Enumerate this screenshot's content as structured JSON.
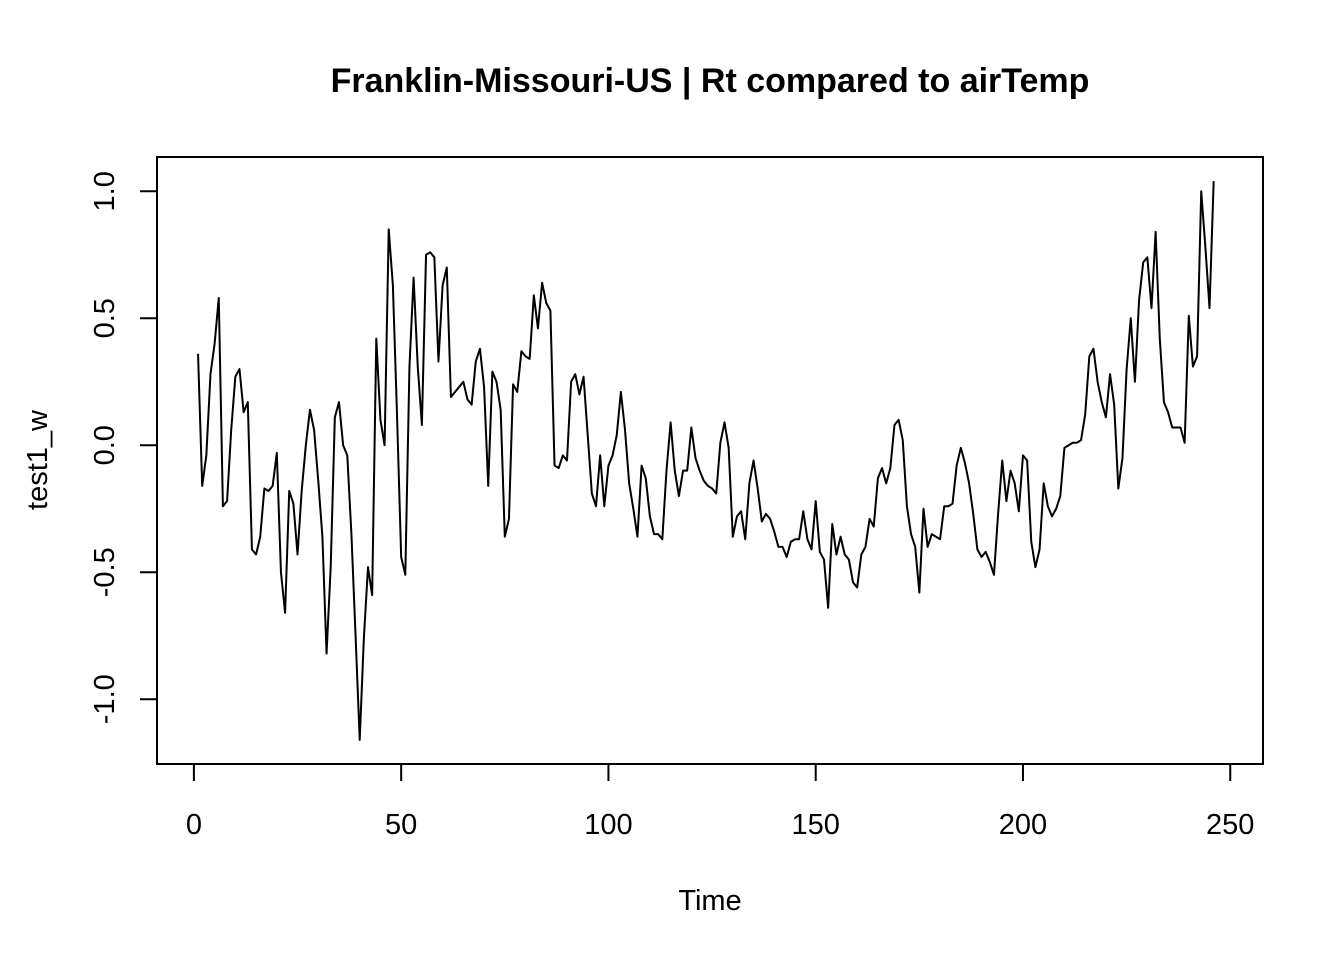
{
  "chart_data": {
    "type": "line",
    "title": "Franklin-Missouri-US | Rt compared to airTemp",
    "xlabel": "Time",
    "ylabel": "test1_w",
    "xlim": [
      -8.9,
      257.9
    ],
    "ylim": [
      -1.255,
      1.135
    ],
    "x_ticks": [
      0,
      50,
      100,
      150,
      200,
      250
    ],
    "x_tick_labels": [
      "0",
      "50",
      "100",
      "150",
      "200",
      "250"
    ],
    "y_ticks": [
      -1.0,
      -0.5,
      0.0,
      0.5,
      1.0
    ],
    "y_tick_labels": [
      "-1.0",
      "-0.5",
      "0.0",
      "0.5",
      "1.0"
    ],
    "grid": false,
    "legend": "none",
    "x_start": 1,
    "series": [
      {
        "color": "#000000",
        "values": [
          0.36,
          -0.16,
          -0.04,
          0.28,
          0.4,
          0.58,
          -0.24,
          -0.22,
          0.06,
          0.27,
          0.3,
          0.13,
          0.17,
          -0.41,
          -0.43,
          -0.36,
          -0.17,
          -0.18,
          -0.16,
          -0.03,
          -0.5,
          -0.66,
          -0.18,
          -0.23,
          -0.43,
          -0.18,
          0.0,
          0.14,
          0.06,
          -0.14,
          -0.36,
          -0.82,
          -0.48,
          0.11,
          0.17,
          0.0,
          -0.04,
          -0.35,
          -0.75,
          -1.16,
          -0.76,
          -0.48,
          -0.59,
          0.42,
          0.1,
          0.0,
          0.85,
          0.63,
          0.12,
          -0.44,
          -0.51,
          0.31,
          0.66,
          0.31,
          0.08,
          0.75,
          0.76,
          0.74,
          0.33,
          0.63,
          0.7,
          0.19,
          0.21,
          0.23,
          0.25,
          0.18,
          0.16,
          0.33,
          0.38,
          0.23,
          -0.16,
          0.29,
          0.25,
          0.14,
          -0.36,
          -0.29,
          0.24,
          0.21,
          0.37,
          0.35,
          0.34,
          0.59,
          0.46,
          0.64,
          0.56,
          0.53,
          -0.08,
          -0.09,
          -0.04,
          -0.06,
          0.25,
          0.28,
          0.2,
          0.27,
          0.04,
          -0.19,
          -0.24,
          -0.04,
          -0.24,
          -0.08,
          -0.04,
          0.04,
          0.21,
          0.06,
          -0.15,
          -0.25,
          -0.36,
          -0.08,
          -0.13,
          -0.28,
          -0.35,
          -0.35,
          -0.37,
          -0.1,
          0.09,
          -0.1,
          -0.2,
          -0.1,
          -0.1,
          0.07,
          -0.05,
          -0.1,
          -0.14,
          -0.16,
          -0.17,
          -0.19,
          0.01,
          0.09,
          -0.01,
          -0.36,
          -0.28,
          -0.26,
          -0.37,
          -0.15,
          -0.06,
          -0.17,
          -0.3,
          -0.27,
          -0.29,
          -0.34,
          -0.4,
          -0.4,
          -0.44,
          -0.38,
          -0.37,
          -0.37,
          -0.26,
          -0.37,
          -0.41,
          -0.22,
          -0.42,
          -0.45,
          -0.64,
          -0.31,
          -0.43,
          -0.36,
          -0.43,
          -0.45,
          -0.54,
          -0.56,
          -0.43,
          -0.4,
          -0.29,
          -0.32,
          -0.13,
          -0.09,
          -0.15,
          -0.09,
          0.08,
          0.1,
          0.02,
          -0.24,
          -0.35,
          -0.4,
          -0.58,
          -0.25,
          -0.4,
          -0.35,
          -0.36,
          -0.37,
          -0.24,
          -0.24,
          -0.23,
          -0.08,
          -0.01,
          -0.07,
          -0.15,
          -0.27,
          -0.41,
          -0.44,
          -0.42,
          -0.46,
          -0.51,
          -0.27,
          -0.06,
          -0.22,
          -0.1,
          -0.15,
          -0.26,
          -0.04,
          -0.06,
          -0.38,
          -0.48,
          -0.41,
          -0.15,
          -0.24,
          -0.28,
          -0.25,
          -0.2,
          -0.01,
          0.0,
          0.01,
          0.01,
          0.02,
          0.12,
          0.35,
          0.38,
          0.25,
          0.17,
          0.11,
          0.28,
          0.16,
          -0.17,
          -0.05,
          0.3,
          0.5,
          0.25,
          0.57,
          0.72,
          0.74,
          0.54,
          0.84,
          0.42,
          0.17,
          0.13,
          0.07,
          0.07,
          0.07,
          0.01,
          0.51,
          0.31,
          0.35,
          1.0,
          0.78,
          0.54,
          1.04
        ]
      }
    ]
  }
}
